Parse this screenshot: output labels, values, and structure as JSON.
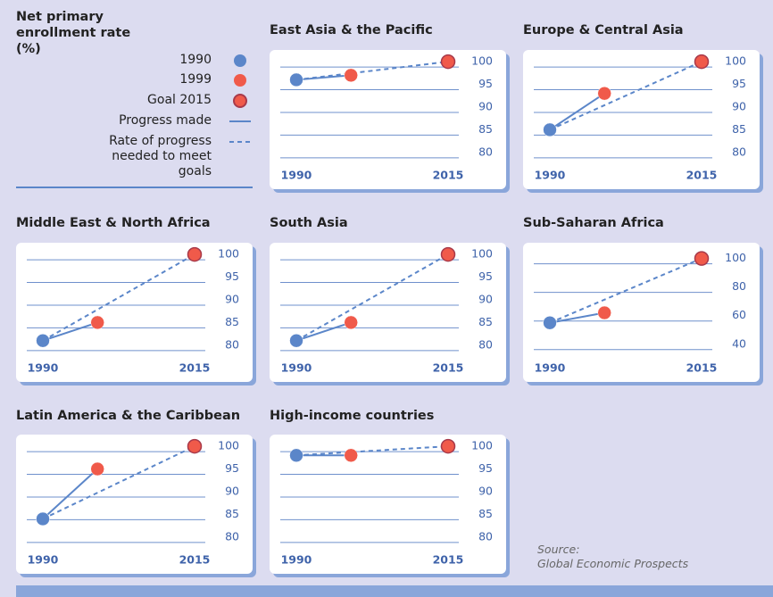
{
  "legend": {
    "title": "Net primary enrollment rate (%)",
    "items": [
      {
        "label": "1990",
        "color": "#5b86c9",
        "symbol": "dot"
      },
      {
        "label": "1999",
        "color": "#f05a4a",
        "symbol": "dot"
      },
      {
        "label": "Goal 2015",
        "color": "#f05a4a",
        "outline": "#a83a4a",
        "symbol": "dot"
      },
      {
        "label": "Progress made",
        "color": "#5b86c9",
        "symbol": "solid"
      },
      {
        "label": "Rate of progress needed to meet goals",
        "color": "#5b86c9",
        "symbol": "dashed"
      }
    ]
  },
  "source": {
    "label": "Source:",
    "text": "Global Economic Prospects"
  },
  "chart_data": [
    {
      "type": "line",
      "title": "East Asia & the Pacific",
      "x": [
        1990,
        1999,
        2015
      ],
      "values": [
        96,
        97,
        100
      ],
      "xlim": [
        1990,
        2015
      ],
      "xticks": [
        1990,
        2015
      ],
      "ylim": [
        78,
        101
      ],
      "yticks": [
        80,
        85,
        90,
        95,
        100
      ],
      "grid": true
    },
    {
      "type": "line",
      "title": "Europe & Central Asia",
      "x": [
        1990,
        1999,
        2015
      ],
      "values": [
        85,
        93,
        100
      ],
      "xlim": [
        1990,
        2015
      ],
      "xticks": [
        1990,
        2015
      ],
      "ylim": [
        78,
        101
      ],
      "yticks": [
        80,
        85,
        90,
        95,
        100
      ],
      "grid": true
    },
    {
      "type": "line",
      "title": "Middle East & North Africa",
      "x": [
        1990,
        1999,
        2015
      ],
      "values": [
        81,
        85,
        100
      ],
      "xlim": [
        1990,
        2015
      ],
      "xticks": [
        1990,
        2015
      ],
      "ylim": [
        78,
        101
      ],
      "yticks": [
        80,
        85,
        90,
        95,
        100
      ],
      "grid": true
    },
    {
      "type": "line",
      "title": "South Asia",
      "x": [
        1990,
        1999,
        2015
      ],
      "values": [
        81,
        85,
        100
      ],
      "xlim": [
        1990,
        2015
      ],
      "xticks": [
        1990,
        2015
      ],
      "ylim": [
        78,
        101
      ],
      "yticks": [
        80,
        85,
        90,
        95,
        100
      ],
      "grid": true
    },
    {
      "type": "line",
      "title": "Sub-Saharan Africa",
      "x": [
        1990,
        1999,
        2015
      ],
      "values": [
        55,
        62,
        100
      ],
      "xlim": [
        1990,
        2015
      ],
      "xticks": [
        1990,
        2015
      ],
      "ylim": [
        33,
        106
      ],
      "yticks": [
        40,
        60,
        80,
        100
      ],
      "grid": true
    },
    {
      "type": "line",
      "title": "Latin America & the Caribbean",
      "x": [
        1990,
        1999,
        2015
      ],
      "values": [
        84,
        95,
        100
      ],
      "xlim": [
        1990,
        2015
      ],
      "xticks": [
        1990,
        2015
      ],
      "ylim": [
        78,
        101
      ],
      "yticks": [
        80,
        85,
        90,
        95,
        100
      ],
      "grid": true
    },
    {
      "type": "line",
      "title": "High-income countries",
      "x": [
        1990,
        1999,
        2015
      ],
      "values": [
        98,
        98,
        100
      ],
      "xlim": [
        1990,
        2015
      ],
      "xticks": [
        1990,
        2015
      ],
      "ylim": [
        78,
        101
      ],
      "yticks": [
        80,
        85,
        90,
        95,
        100
      ],
      "grid": true
    }
  ]
}
